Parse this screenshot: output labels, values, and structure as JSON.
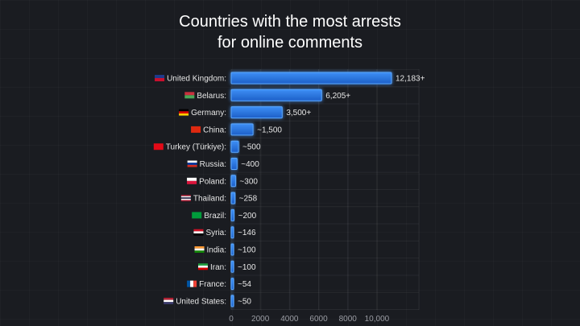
{
  "chart_data": {
    "type": "bar",
    "orientation": "horizontal",
    "title_lines": [
      "Countries with the most arrests",
      "for online comments"
    ],
    "categories": [
      "United Kingdom:",
      "Belarus:",
      "Germany:",
      "China:",
      "Turkey (Türkiye):",
      "Russia:",
      "Poland:",
      "Thailand:",
      "Brazil:",
      "Syria:",
      "India:",
      "Iran:",
      "France:",
      "United States:"
    ],
    "flags": [
      "gb",
      "by",
      "de",
      "cn",
      "tr",
      "ru",
      "pl",
      "th",
      "br",
      "sy",
      "in",
      "ir",
      "fr",
      "us"
    ],
    "values": [
      12183,
      6205,
      3500,
      1500,
      500,
      400,
      300,
      258,
      200,
      146,
      100,
      100,
      54,
      50
    ],
    "value_labels": [
      "12,183+",
      "6,205+",
      "3,500+",
      "~1,500",
      "~500",
      "~400",
      "~300",
      "~258",
      "~200",
      "~146",
      "~100",
      "~100",
      "~54",
      "~50"
    ],
    "xticks": [
      0,
      2000,
      4000,
      6000,
      8000,
      10000
    ],
    "xtick_labels": [
      "0",
      "2000",
      "4000",
      "6000",
      "8000",
      "10,000"
    ],
    "xlim": [
      0,
      11000
    ],
    "grid": true,
    "bar_color": "#2f7fe8"
  }
}
